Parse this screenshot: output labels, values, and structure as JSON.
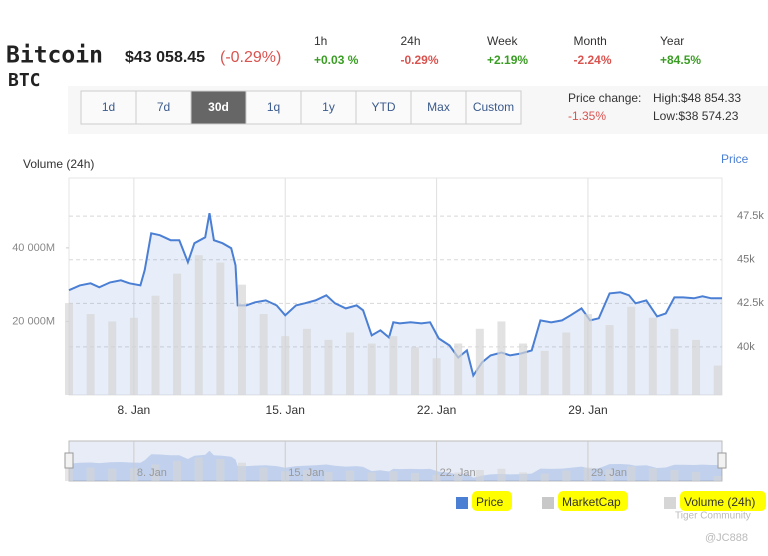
{
  "header": {
    "name": "Bitcoin",
    "symbol": "BTC",
    "price": "$43 058.45",
    "change": "(-0.29%)",
    "change_color": "#d9534f"
  },
  "stats": [
    {
      "label": "1h",
      "value": "+0.03 %",
      "color": "#3a9d23"
    },
    {
      "label": "24h",
      "value": "-0.29%",
      "color": "#d9534f"
    },
    {
      "label": "Week",
      "value": "+2.19%",
      "color": "#3a9d23"
    },
    {
      "label": "Month",
      "value": "-2.24%",
      "color": "#d9534f"
    },
    {
      "label": "Year",
      "value": "+84.5%",
      "color": "#3a9d23"
    }
  ],
  "ranges": {
    "buttons": [
      "1d",
      "7d",
      "30d",
      "1q",
      "1y",
      "YTD",
      "Max",
      "Custom"
    ],
    "active": 2
  },
  "price_change": {
    "label": "Price change:",
    "value": "-1.35%",
    "value_color": "#d9534f",
    "high": "High:$48 854.33",
    "low": "Low:$38 574.23"
  },
  "chart_data": {
    "type": "line",
    "ylabel": "Volume (24h)",
    "y2label": "Price",
    "xlim": [
      5,
      35.2
    ],
    "xticks": [
      {
        "value": 8,
        "label": "8. Jan"
      },
      {
        "value": 15,
        "label": "15. Jan"
      },
      {
        "value": 22,
        "label": "22. Jan"
      },
      {
        "value": 29,
        "label": "29. Jan"
      }
    ],
    "ylim": [
      0,
      59000
    ],
    "yticks": [
      {
        "value": 20000,
        "label": "20 000M"
      },
      {
        "value": 40000,
        "label": "40 000M"
      }
    ],
    "y2lim": [
      37240,
      49690
    ],
    "y2ticks": [
      {
        "value": 40000,
        "label": "40k"
      },
      {
        "value": 42500,
        "label": "42.5k"
      },
      {
        "value": 45000,
        "label": "45k"
      },
      {
        "value": 47500,
        "label": "47.5k"
      }
    ],
    "grid": true,
    "series": [
      {
        "name": "Price",
        "color": "#4a7fd4",
        "axis": "y2",
        "type": "line",
        "x": [
          5.0,
          5.5,
          6.0,
          6.4,
          6.9,
          7.4,
          7.8,
          8.3,
          8.5,
          8.8,
          9.2,
          9.7,
          10.1,
          10.5,
          10.8,
          11.3,
          11.5,
          11.7,
          12.1,
          12.5,
          12.7,
          12.8,
          13.2,
          13.6,
          14.1,
          14.6,
          15.0,
          15.5,
          15.9,
          16.4,
          16.9,
          17.3,
          17.8,
          18.3,
          18.6,
          19.0,
          19.4,
          19.8,
          20.0,
          20.3,
          20.8,
          21.3,
          21.7,
          22.1,
          22.6,
          23.0,
          23.4,
          23.7,
          24.1,
          24.5,
          25.0,
          25.4,
          25.9,
          26.4,
          26.8,
          27.3,
          27.8,
          28.2,
          28.7,
          29.1,
          29.5,
          30.0,
          30.5,
          30.9,
          31.2,
          31.7,
          32.2,
          32.6,
          33.0,
          33.4,
          33.9,
          34.3,
          34.7,
          35.2
        ],
        "values": [
          43250,
          43530,
          43650,
          43420,
          43700,
          43820,
          43650,
          43530,
          44400,
          46520,
          46410,
          46120,
          46120,
          44860,
          45950,
          46290,
          47670,
          46120,
          45950,
          45660,
          44680,
          42380,
          42380,
          42560,
          42670,
          42380,
          41810,
          42380,
          42500,
          42670,
          42960,
          42500,
          42210,
          42380,
          42100,
          40660,
          40950,
          40540,
          41410,
          41350,
          41410,
          41350,
          41410,
          40490,
          40080,
          39390,
          39800,
          38360,
          39110,
          39510,
          39680,
          39510,
          39620,
          39800,
          41520,
          41410,
          41520,
          41810,
          42210,
          41520,
          41640,
          43070,
          43130,
          42960,
          42500,
          42670,
          41750,
          41920,
          42840,
          42840,
          42790,
          42900,
          42790,
          42790
        ]
      },
      {
        "name": "Volume (24h)",
        "color": "#d6d6d6",
        "axis": "y",
        "type": "bar",
        "x": [
          5,
          6,
          7,
          8,
          9,
          10,
          11,
          12,
          13,
          14,
          15,
          16,
          17,
          18,
          19,
          20,
          21,
          22,
          23,
          24,
          25,
          26,
          27,
          28,
          29,
          30,
          31,
          32,
          33,
          34,
          35
        ],
        "values": [
          25000,
          22000,
          20000,
          21000,
          27000,
          33000,
          38000,
          36000,
          30000,
          22000,
          16000,
          18000,
          15000,
          17000,
          14000,
          16000,
          13000,
          10000,
          14000,
          18000,
          20000,
          14000,
          12000,
          17000,
          22000,
          19000,
          24000,
          21000,
          18000,
          15000,
          8000
        ]
      }
    ],
    "extra_legend": {
      "name": "MarketCap",
      "color": "#c8c8c8"
    },
    "legend_highlight": "#ffff00"
  },
  "watermark": {
    "brand": "Tiger Community",
    "user": "@JC888"
  }
}
